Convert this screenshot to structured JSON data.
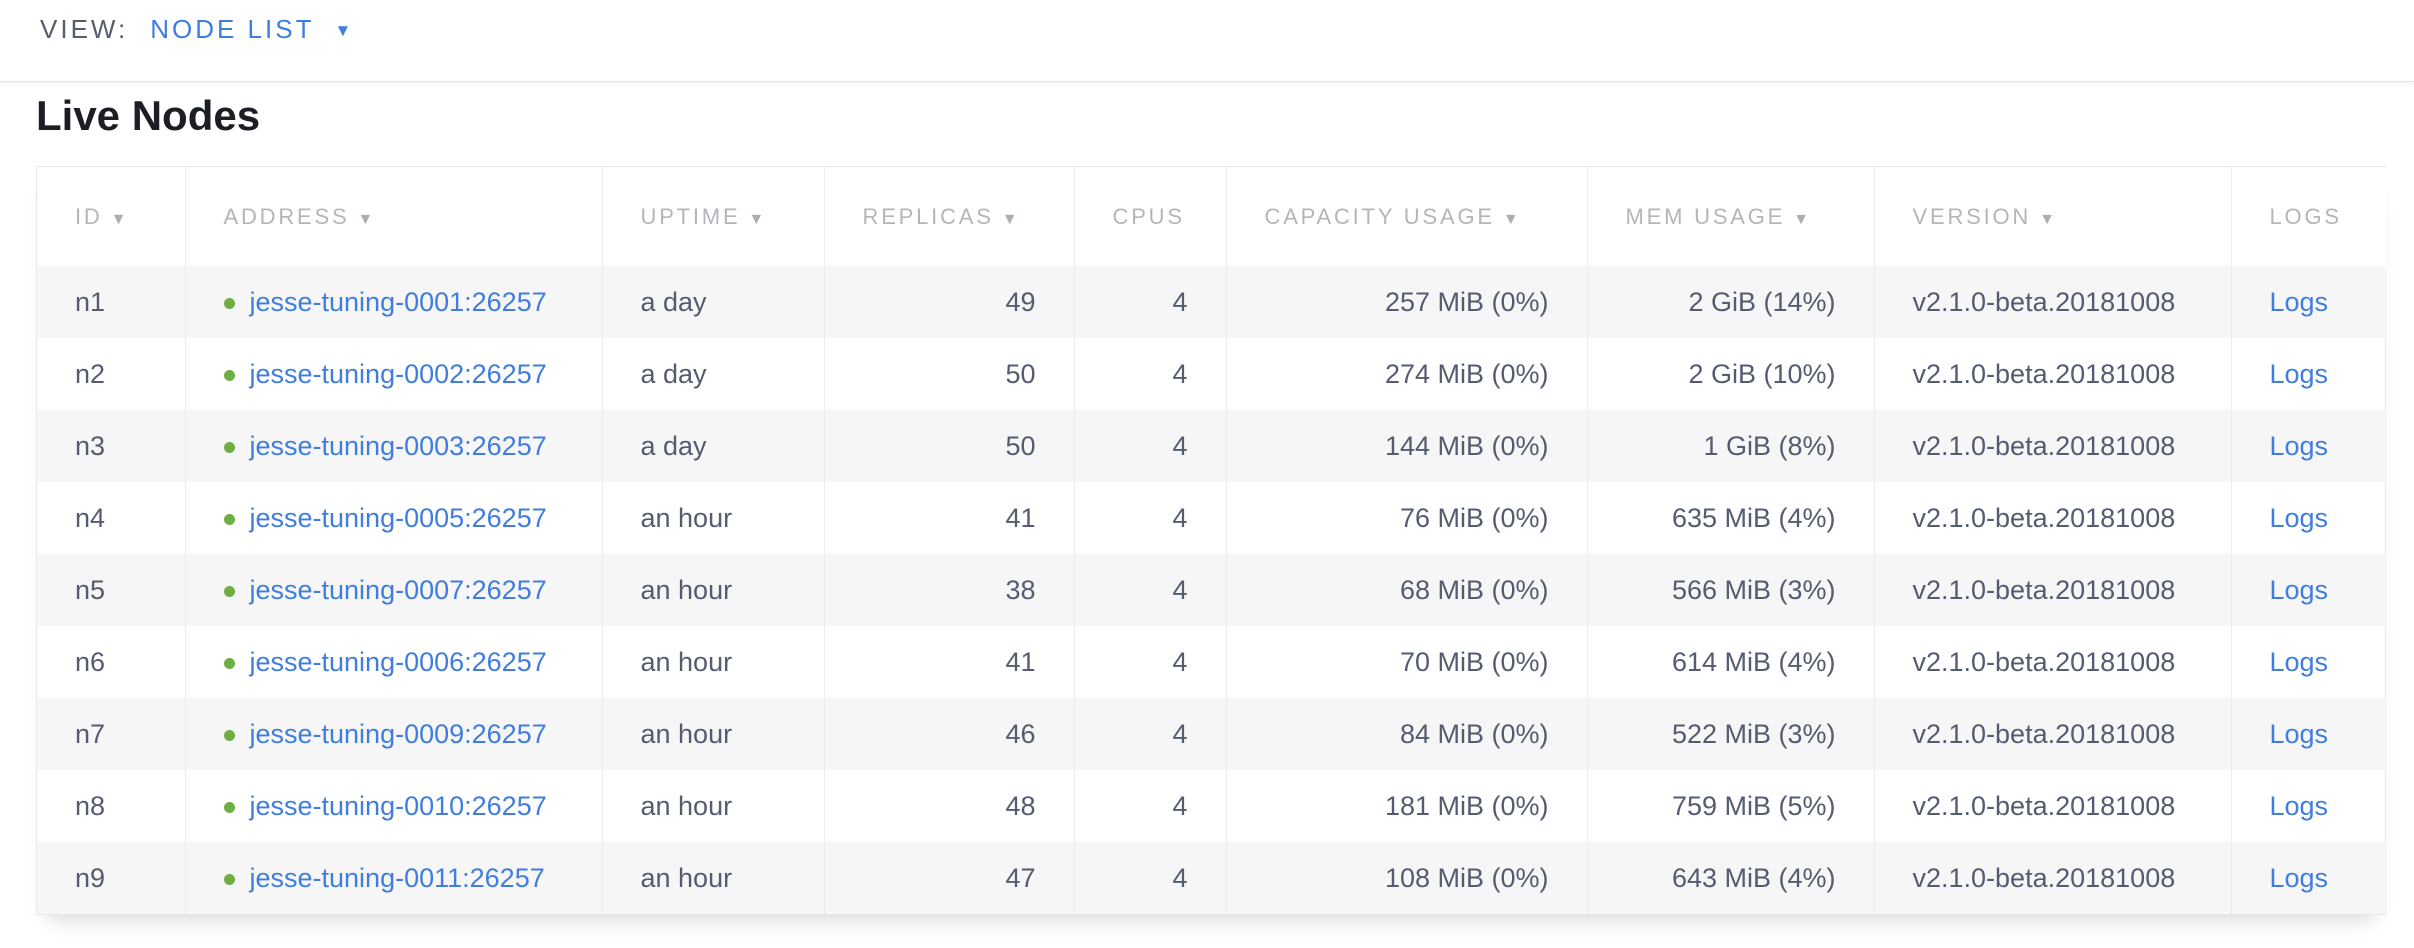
{
  "view_bar": {
    "label": "VIEW:",
    "selected": "NODE LIST",
    "dropdown_indicator": "▼"
  },
  "page": {
    "title": "Live Nodes"
  },
  "colors": {
    "link_blue": "#3f7de0",
    "node_healthy_green": "#6fae42",
    "header_gray": "#b2b6bc",
    "body_text": "#535c70",
    "stripe": "#f6f6f6"
  },
  "icons": {
    "sort_indicator": "▼",
    "node_status_dot": "green-circle"
  },
  "table": {
    "columns": [
      {
        "key": "id",
        "label": "ID",
        "sortable": true
      },
      {
        "key": "address",
        "label": "ADDRESS",
        "sortable": true
      },
      {
        "key": "uptime",
        "label": "UPTIME",
        "sortable": true
      },
      {
        "key": "replicas",
        "label": "REPLICAS",
        "sortable": true
      },
      {
        "key": "cpus",
        "label": "CPUS",
        "sortable": false
      },
      {
        "key": "capacity",
        "label": "CAPACITY USAGE",
        "sortable": true
      },
      {
        "key": "mem",
        "label": "MEM USAGE",
        "sortable": true
      },
      {
        "key": "version",
        "label": "VERSION",
        "sortable": true
      },
      {
        "key": "logs",
        "label": "LOGS",
        "sortable": false
      }
    ],
    "rows": [
      {
        "id": "n1",
        "address": "jesse-tuning-0001:26257",
        "uptime": "a day",
        "replicas": "49",
        "cpus": "4",
        "capacity": "257 MiB (0%)",
        "mem": "2 GiB (14%)",
        "version": "v2.1.0-beta.20181008",
        "logs": "Logs"
      },
      {
        "id": "n2",
        "address": "jesse-tuning-0002:26257",
        "uptime": "a day",
        "replicas": "50",
        "cpus": "4",
        "capacity": "274 MiB (0%)",
        "mem": "2 GiB (10%)",
        "version": "v2.1.0-beta.20181008",
        "logs": "Logs"
      },
      {
        "id": "n3",
        "address": "jesse-tuning-0003:26257",
        "uptime": "a day",
        "replicas": "50",
        "cpus": "4",
        "capacity": "144 MiB (0%)",
        "mem": "1 GiB (8%)",
        "version": "v2.1.0-beta.20181008",
        "logs": "Logs"
      },
      {
        "id": "n4",
        "address": "jesse-tuning-0005:26257",
        "uptime": "an hour",
        "replicas": "41",
        "cpus": "4",
        "capacity": "76 MiB (0%)",
        "mem": "635 MiB (4%)",
        "version": "v2.1.0-beta.20181008",
        "logs": "Logs"
      },
      {
        "id": "n5",
        "address": "jesse-tuning-0007:26257",
        "uptime": "an hour",
        "replicas": "38",
        "cpus": "4",
        "capacity": "68 MiB (0%)",
        "mem": "566 MiB (3%)",
        "version": "v2.1.0-beta.20181008",
        "logs": "Logs"
      },
      {
        "id": "n6",
        "address": "jesse-tuning-0006:26257",
        "uptime": "an hour",
        "replicas": "41",
        "cpus": "4",
        "capacity": "70 MiB (0%)",
        "mem": "614 MiB (4%)",
        "version": "v2.1.0-beta.20181008",
        "logs": "Logs"
      },
      {
        "id": "n7",
        "address": "jesse-tuning-0009:26257",
        "uptime": "an hour",
        "replicas": "46",
        "cpus": "4",
        "capacity": "84 MiB (0%)",
        "mem": "522 MiB (3%)",
        "version": "v2.1.0-beta.20181008",
        "logs": "Logs"
      },
      {
        "id": "n8",
        "address": "jesse-tuning-0010:26257",
        "uptime": "an hour",
        "replicas": "48",
        "cpus": "4",
        "capacity": "181 MiB (0%)",
        "mem": "759 MiB (5%)",
        "version": "v2.1.0-beta.20181008",
        "logs": "Logs"
      },
      {
        "id": "n9",
        "address": "jesse-tuning-0011:26257",
        "uptime": "an hour",
        "replicas": "47",
        "cpus": "4",
        "capacity": "108 MiB (0%)",
        "mem": "643 MiB (4%)",
        "version": "v2.1.0-beta.20181008",
        "logs": "Logs"
      }
    ]
  }
}
